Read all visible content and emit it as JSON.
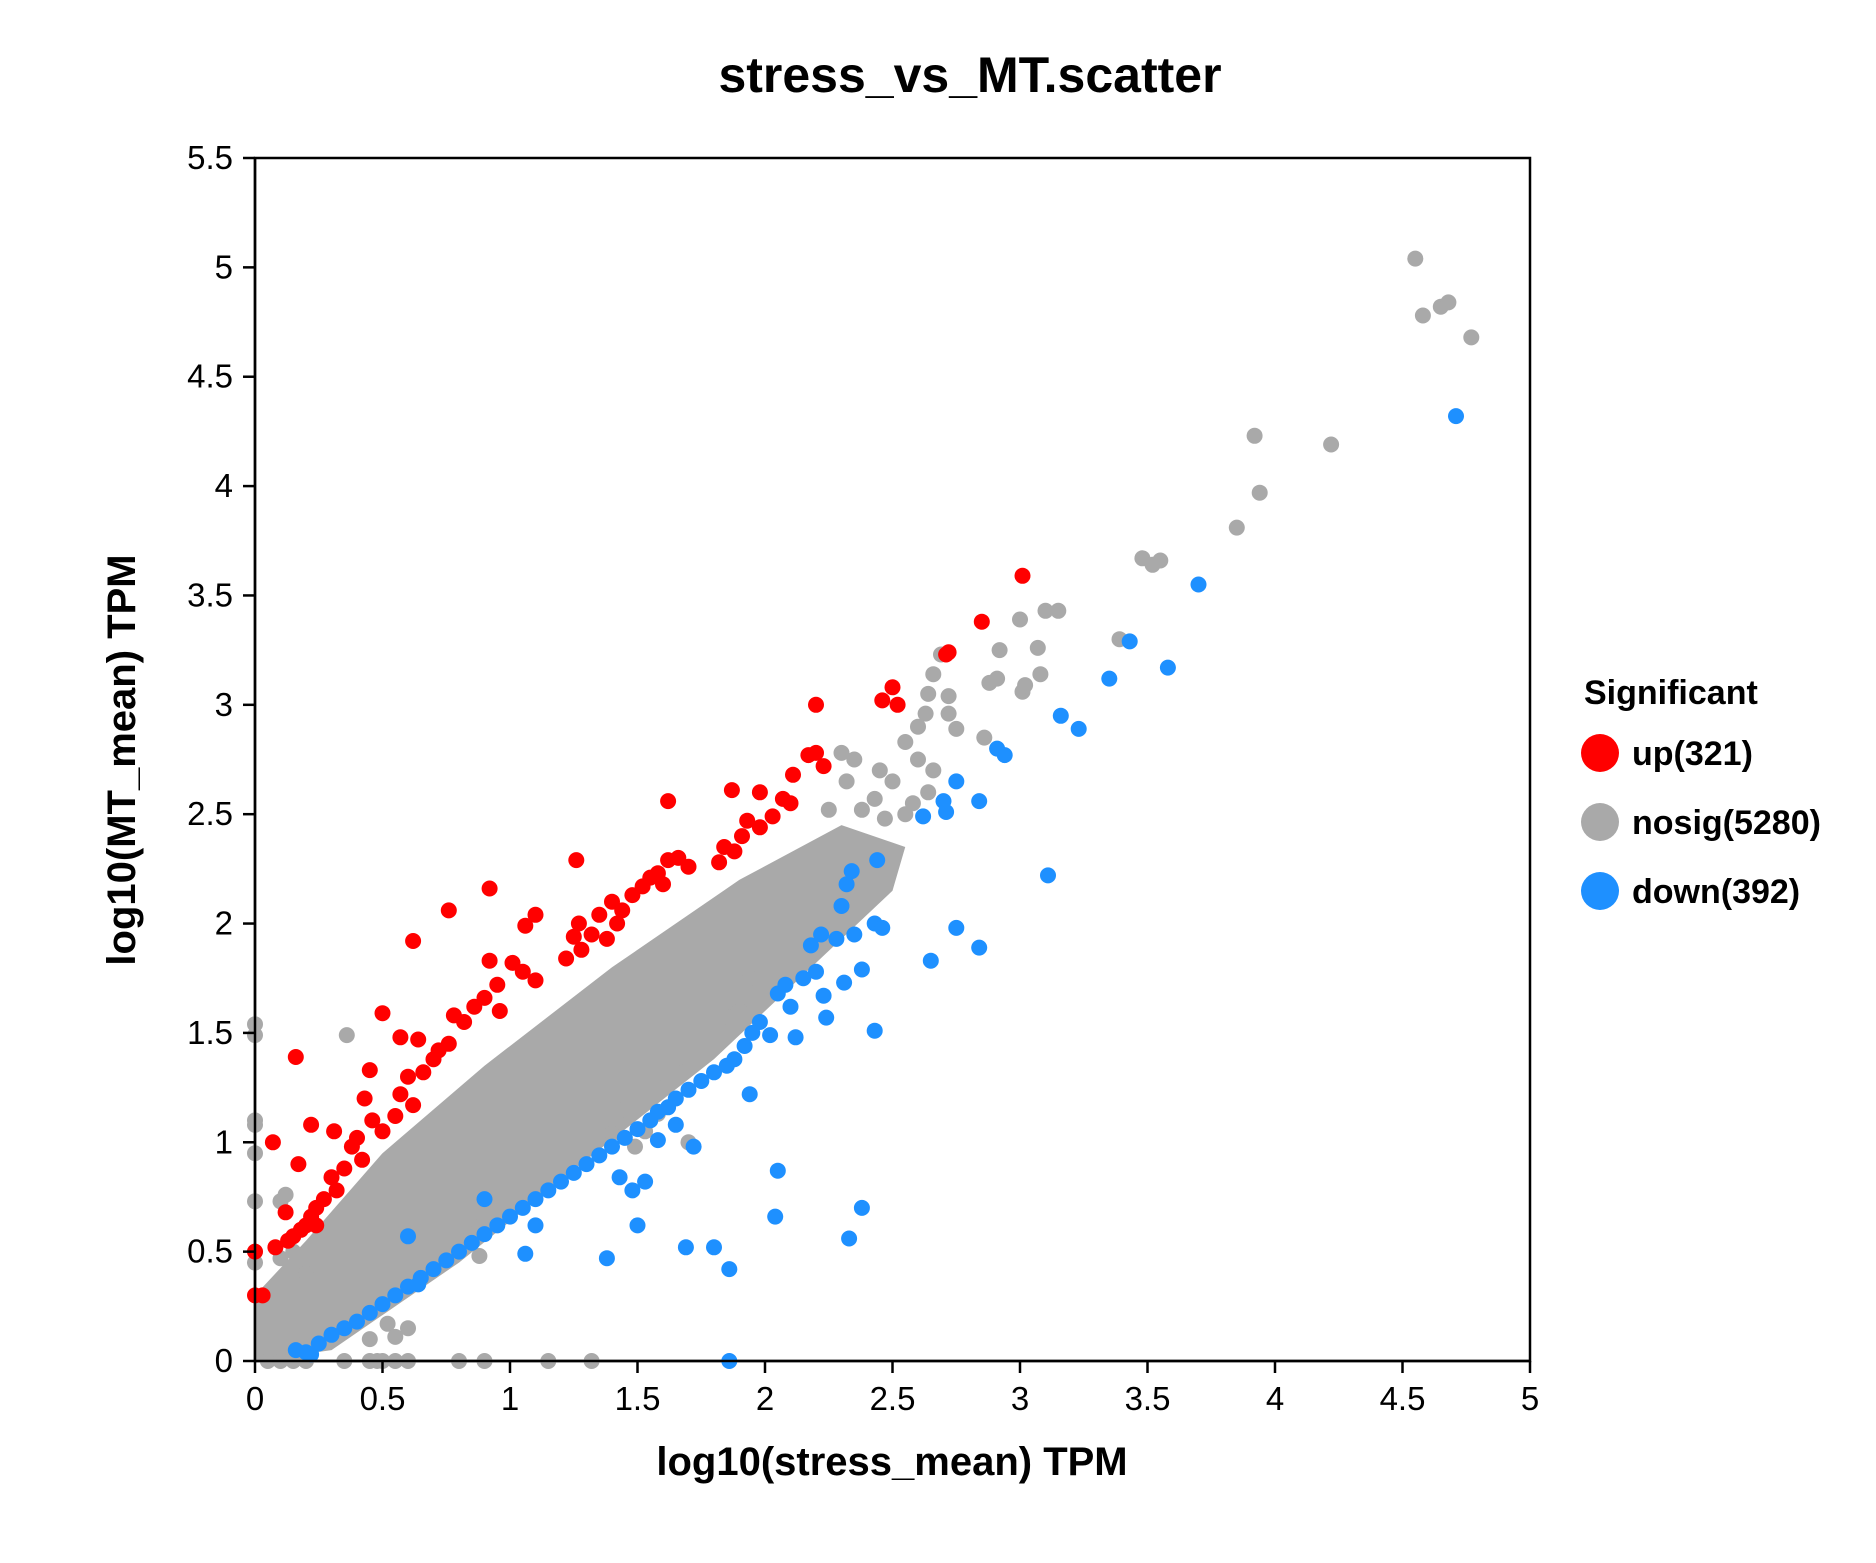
{
  "chart_data": {
    "type": "scatter",
    "title": "stress_vs_MT.scatter",
    "xlabel": "log10(stress_mean) TPM",
    "ylabel": "log10(MT_mean) TPM",
    "xlim": [
      0,
      5
    ],
    "ylim": [
      0,
      5.5
    ],
    "xticks": [
      0,
      0.5,
      1,
      1.5,
      2,
      2.5,
      3,
      3.5,
      4,
      4.5,
      5
    ],
    "xtick_labels": [
      "0",
      "0.5",
      "1",
      "1.5",
      "2",
      "2.5",
      "3",
      "3.5",
      "4",
      "4.5",
      "5"
    ],
    "yticks": [
      0,
      0.5,
      1,
      1.5,
      2,
      2.5,
      3,
      3.5,
      4,
      4.5,
      5,
      5.5
    ],
    "ytick_labels": [
      "0",
      "0.5",
      "1",
      "1.5",
      "2",
      "2.5",
      "3",
      "3.5",
      "4",
      "4.5",
      "5",
      "5.5"
    ],
    "grid": false,
    "legend": {
      "title": "Significant",
      "placement": "right",
      "entries": [
        {
          "label": "up(321)",
          "color": "#ff0000"
        },
        {
          "label": "nosig(5280)",
          "color": "#a9a9a9"
        },
        {
          "label": "down(392)",
          "color": "#1e90ff"
        }
      ]
    },
    "series": [
      {
        "name": "nosig(5280)",
        "color": "#a9a9a9",
        "points": [
          [
            4.55,
            5.04
          ],
          [
            4.58,
            4.78
          ],
          [
            4.65,
            4.82
          ],
          [
            4.68,
            4.84
          ],
          [
            4.77,
            4.68
          ],
          [
            3.92,
            4.23
          ],
          [
            3.94,
            3.97
          ],
          [
            4.22,
            4.19
          ],
          [
            3.85,
            3.81
          ],
          [
            3.48,
            3.67
          ],
          [
            3.52,
            3.64
          ],
          [
            3.55,
            3.66
          ],
          [
            3.39,
            3.3
          ],
          [
            3.1,
            3.43
          ],
          [
            3.15,
            3.43
          ],
          [
            3.0,
            3.39
          ],
          [
            2.92,
            3.25
          ],
          [
            3.07,
            3.26
          ],
          [
            2.88,
            3.1
          ],
          [
            2.91,
            3.12
          ],
          [
            3.01,
            3.06
          ],
          [
            3.02,
            3.09
          ],
          [
            3.08,
            3.14
          ],
          [
            2.72,
            3.04
          ],
          [
            2.69,
            3.23
          ],
          [
            2.64,
            3.05
          ],
          [
            2.66,
            3.14
          ],
          [
            2.86,
            2.85
          ],
          [
            2.63,
            2.96
          ],
          [
            2.6,
            2.9
          ],
          [
            2.55,
            2.83
          ],
          [
            2.6,
            2.75
          ],
          [
            2.66,
            2.7
          ],
          [
            2.72,
            2.96
          ],
          [
            2.75,
            2.89
          ],
          [
            2.45,
            2.7
          ],
          [
            2.5,
            2.65
          ],
          [
            2.43,
            2.57
          ],
          [
            2.38,
            2.52
          ],
          [
            2.47,
            2.48
          ],
          [
            2.55,
            2.5
          ],
          [
            2.58,
            2.55
          ],
          [
            2.64,
            2.6
          ],
          [
            2.3,
            2.78
          ],
          [
            2.35,
            2.75
          ],
          [
            2.32,
            2.65
          ],
          [
            2.25,
            2.52
          ],
          [
            0.0,
            1.54
          ],
          [
            0.0,
            1.49
          ],
          [
            0.0,
            1.1
          ],
          [
            0.0,
            1.08
          ],
          [
            0.0,
            0.95
          ],
          [
            0.0,
            0.73
          ],
          [
            0.0,
            0.5
          ],
          [
            0.0,
            0.45
          ],
          [
            0.1,
            0.73
          ],
          [
            0.12,
            0.76
          ],
          [
            0.36,
            1.49
          ],
          [
            0.15,
            0.5
          ],
          [
            0.1,
            0.47
          ],
          [
            0.2,
            0.4
          ],
          [
            0.05,
            0.0
          ],
          [
            0.1,
            0.0
          ],
          [
            0.15,
            0.0
          ],
          [
            0.2,
            0.0
          ],
          [
            0.35,
            0.0
          ],
          [
            0.45,
            0.0
          ],
          [
            0.5,
            0.0
          ],
          [
            0.55,
            0.0
          ],
          [
            0.6,
            0.0
          ],
          [
            0.8,
            0.0
          ],
          [
            0.9,
            0.0
          ],
          [
            1.15,
            0.0
          ],
          [
            1.32,
            0.0
          ],
          [
            1.94,
            1.75
          ],
          [
            1.9,
            1.6
          ],
          [
            1.86,
            1.57
          ],
          [
            1.68,
            1.32
          ],
          [
            1.62,
            1.28
          ],
          [
            1.58,
            1.13
          ],
          [
            1.53,
            1.05
          ],
          [
            1.49,
            0.98
          ],
          [
            1.7,
            1.0
          ],
          [
            1.45,
            1.15
          ],
          [
            1.4,
            1.04
          ],
          [
            0.88,
            0.48
          ],
          [
            0.85,
            0.58
          ],
          [
            0.9,
            0.65
          ],
          [
            0.75,
            0.47
          ],
          [
            0.52,
            0.17
          ],
          [
            0.55,
            0.11
          ],
          [
            0.6,
            0.15
          ],
          [
            0.45,
            0.1
          ],
          [
            0.48,
            0.0
          ]
        ]
      },
      {
        "name": "up(321)",
        "color": "#ff0000",
        "points": [
          [
            3.01,
            3.59
          ],
          [
            2.85,
            3.38
          ],
          [
            2.71,
            3.23
          ],
          [
            2.72,
            3.24
          ],
          [
            2.5,
            3.08
          ],
          [
            2.46,
            3.02
          ],
          [
            2.52,
            3.0
          ],
          [
            2.2,
            3.0
          ],
          [
            2.17,
            2.77
          ],
          [
            2.2,
            2.78
          ],
          [
            2.23,
            2.72
          ],
          [
            1.87,
            2.61
          ],
          [
            1.98,
            2.6
          ],
          [
            2.11,
            2.68
          ],
          [
            1.62,
            2.56
          ],
          [
            2.03,
            2.49
          ],
          [
            2.07,
            2.57
          ],
          [
            2.1,
            2.55
          ],
          [
            1.93,
            2.47
          ],
          [
            1.91,
            2.4
          ],
          [
            1.98,
            2.44
          ],
          [
            1.84,
            2.35
          ],
          [
            1.82,
            2.28
          ],
          [
            1.88,
            2.33
          ],
          [
            1.62,
            2.29
          ],
          [
            1.66,
            2.3
          ],
          [
            1.7,
            2.26
          ],
          [
            1.58,
            2.23
          ],
          [
            1.6,
            2.18
          ],
          [
            1.52,
            2.17
          ],
          [
            1.55,
            2.21
          ],
          [
            1.48,
            2.13
          ],
          [
            1.44,
            2.06
          ],
          [
            1.4,
            2.1
          ],
          [
            1.42,
            2.0
          ],
          [
            1.35,
            2.04
          ],
          [
            1.32,
            1.95
          ],
          [
            1.38,
            1.93
          ],
          [
            1.27,
            2.0
          ],
          [
            1.28,
            1.88
          ],
          [
            1.22,
            1.84
          ],
          [
            1.25,
            1.94
          ],
          [
            1.1,
            2.04
          ],
          [
            1.06,
            1.99
          ],
          [
            1.01,
            1.82
          ],
          [
            1.05,
            1.78
          ],
          [
            1.1,
            1.74
          ],
          [
            0.92,
            1.83
          ],
          [
            0.95,
            1.72
          ],
          [
            0.9,
            1.66
          ],
          [
            0.96,
            1.6
          ],
          [
            0.86,
            1.62
          ],
          [
            0.82,
            1.55
          ],
          [
            0.78,
            1.58
          ],
          [
            0.76,
            1.45
          ],
          [
            0.72,
            1.42
          ],
          [
            0.7,
            1.38
          ],
          [
            0.64,
            1.47
          ],
          [
            0.66,
            1.32
          ],
          [
            0.6,
            1.3
          ],
          [
            0.57,
            1.22
          ],
          [
            0.62,
            1.17
          ],
          [
            0.55,
            1.12
          ],
          [
            0.5,
            1.05
          ],
          [
            0.46,
            1.1
          ],
          [
            0.4,
            1.02
          ],
          [
            0.38,
            0.98
          ],
          [
            0.42,
            0.92
          ],
          [
            0.35,
            0.88
          ],
          [
            0.3,
            0.84
          ],
          [
            0.32,
            0.78
          ],
          [
            0.27,
            0.74
          ],
          [
            0.24,
            0.7
          ],
          [
            0.22,
            0.66
          ],
          [
            0.2,
            0.62
          ],
          [
            0.18,
            0.6
          ],
          [
            0.15,
            0.57
          ],
          [
            0.13,
            0.55
          ],
          [
            1.26,
            2.29
          ],
          [
            0.92,
            2.16
          ],
          [
            0.76,
            2.06
          ],
          [
            0.62,
            1.92
          ],
          [
            0.5,
            1.59
          ],
          [
            0.57,
            1.48
          ],
          [
            0.45,
            1.33
          ],
          [
            0.43,
            1.2
          ],
          [
            0.31,
            1.05
          ],
          [
            0.22,
            1.08
          ],
          [
            0.16,
            1.39
          ],
          [
            0.07,
            1.0
          ],
          [
            0.17,
            0.9
          ],
          [
            0.12,
            0.68
          ],
          [
            0.0,
            0.5
          ],
          [
            0.0,
            0.3
          ],
          [
            0.03,
            0.3
          ],
          [
            0.08,
            0.52
          ],
          [
            0.24,
            0.62
          ]
        ]
      },
      {
        "name": "down(392)",
        "color": "#1e90ff",
        "points": [
          [
            4.71,
            4.32
          ],
          [
            3.7,
            3.55
          ],
          [
            3.43,
            3.29
          ],
          [
            3.58,
            3.17
          ],
          [
            3.35,
            3.12
          ],
          [
            3.16,
            2.95
          ],
          [
            3.23,
            2.89
          ],
          [
            2.94,
            2.77
          ],
          [
            2.91,
            2.8
          ],
          [
            2.75,
            2.65
          ],
          [
            2.7,
            2.56
          ],
          [
            2.71,
            2.51
          ],
          [
            2.84,
            2.56
          ],
          [
            2.62,
            2.49
          ],
          [
            3.11,
            2.22
          ],
          [
            2.44,
            2.29
          ],
          [
            2.34,
            2.24
          ],
          [
            2.32,
            2.18
          ],
          [
            2.43,
            2.0
          ],
          [
            2.46,
            1.98
          ],
          [
            2.35,
            1.95
          ],
          [
            2.28,
            1.93
          ],
          [
            2.3,
            2.08
          ],
          [
            2.75,
            1.98
          ],
          [
            2.84,
            1.89
          ],
          [
            2.65,
            1.83
          ],
          [
            2.22,
            1.95
          ],
          [
            2.18,
            1.9
          ],
          [
            2.2,
            1.78
          ],
          [
            2.15,
            1.75
          ],
          [
            2.08,
            1.72
          ],
          [
            2.05,
            1.68
          ],
          [
            2.1,
            1.62
          ],
          [
            2.23,
            1.67
          ],
          [
            2.24,
            1.57
          ],
          [
            2.38,
            1.79
          ],
          [
            2.31,
            1.73
          ],
          [
            2.43,
            1.51
          ],
          [
            2.12,
            1.48
          ],
          [
            2.02,
            1.49
          ],
          [
            1.98,
            1.55
          ],
          [
            1.95,
            1.5
          ],
          [
            1.92,
            1.44
          ],
          [
            1.88,
            1.38
          ],
          [
            1.85,
            1.35
          ],
          [
            1.8,
            1.32
          ],
          [
            1.75,
            1.28
          ],
          [
            1.7,
            1.24
          ],
          [
            1.65,
            1.2
          ],
          [
            1.62,
            1.16
          ],
          [
            1.58,
            1.14
          ],
          [
            1.55,
            1.1
          ],
          [
            1.5,
            1.06
          ],
          [
            1.45,
            1.02
          ],
          [
            1.4,
            0.98
          ],
          [
            1.35,
            0.94
          ],
          [
            1.3,
            0.9
          ],
          [
            1.25,
            0.86
          ],
          [
            1.2,
            0.82
          ],
          [
            1.15,
            0.78
          ],
          [
            1.1,
            0.74
          ],
          [
            1.05,
            0.7
          ],
          [
            1.0,
            0.66
          ],
          [
            0.95,
            0.62
          ],
          [
            0.9,
            0.58
          ],
          [
            0.85,
            0.54
          ],
          [
            0.8,
            0.5
          ],
          [
            0.75,
            0.46
          ],
          [
            0.7,
            0.42
          ],
          [
            0.65,
            0.38
          ],
          [
            0.6,
            0.34
          ],
          [
            0.55,
            0.3
          ],
          [
            0.5,
            0.26
          ],
          [
            0.45,
            0.22
          ],
          [
            0.4,
            0.18
          ],
          [
            0.35,
            0.15
          ],
          [
            0.3,
            0.12
          ],
          [
            0.25,
            0.08
          ],
          [
            0.2,
            0.04
          ],
          [
            0.16,
            0.05
          ],
          [
            1.94,
            1.22
          ],
          [
            2.05,
            0.87
          ],
          [
            2.38,
            0.7
          ],
          [
            2.04,
            0.66
          ],
          [
            2.33,
            0.56
          ],
          [
            1.69,
            0.52
          ],
          [
            1.8,
            0.52
          ],
          [
            1.86,
            0.42
          ],
          [
            1.48,
            0.78
          ],
          [
            1.43,
            0.84
          ],
          [
            1.5,
            0.62
          ],
          [
            1.38,
            0.47
          ],
          [
            1.1,
            0.62
          ],
          [
            1.06,
            0.49
          ],
          [
            0.9,
            0.74
          ],
          [
            0.6,
            0.57
          ],
          [
            0.64,
            0.35
          ],
          [
            1.86,
            0.0
          ],
          [
            1.53,
            0.82
          ],
          [
            1.65,
            1.08
          ],
          [
            1.58,
            1.01
          ],
          [
            1.72,
            0.98
          ],
          [
            0.22,
            0.03
          ]
        ]
      }
    ]
  }
}
